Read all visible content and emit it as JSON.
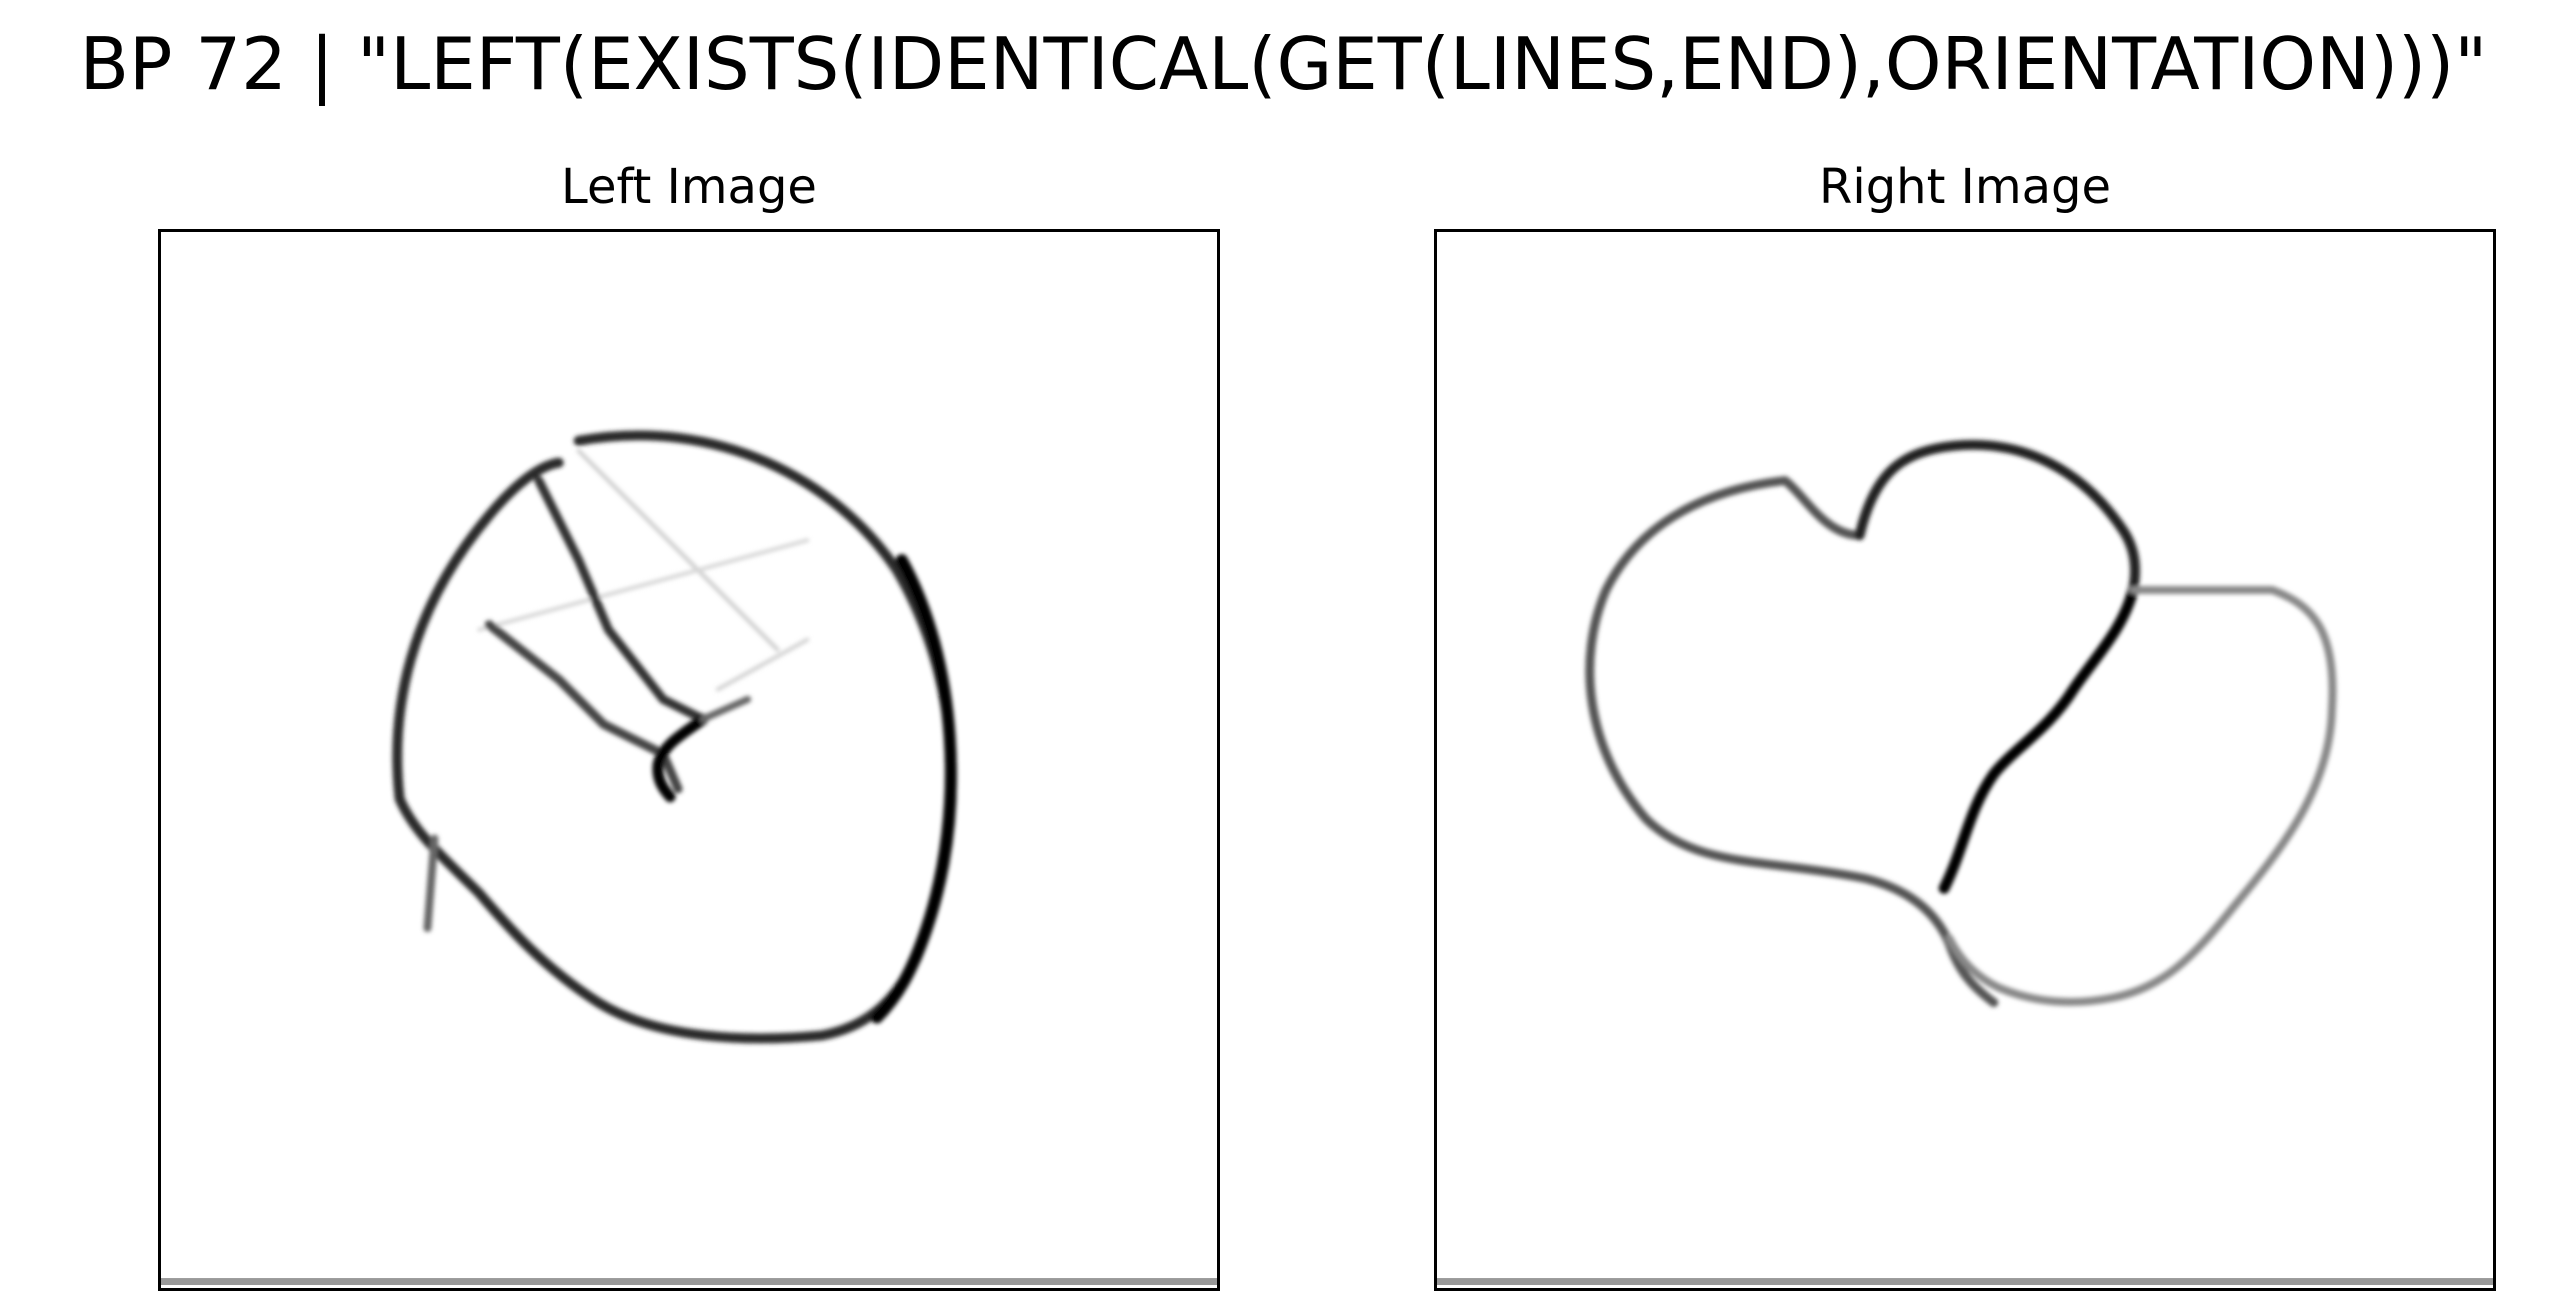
{
  "figure": {
    "title": "BP 72 | \"LEFT(EXISTS(IDENTICAL(GET(LINES,END),ORIENTATION)))\""
  },
  "panels": [
    {
      "title": "Left Image",
      "content": "closed circle-like curve enclosing a V-shaped mark of two lines meeting at a point, with a short tail line at lower left"
    },
    {
      "title": "Right Image",
      "content": "two adjoining closed blob shapes sharing a curved boundary"
    }
  ],
  "colors": {
    "ink": "#000000",
    "background": "#ffffff",
    "bottom_strip": "#999999"
  }
}
